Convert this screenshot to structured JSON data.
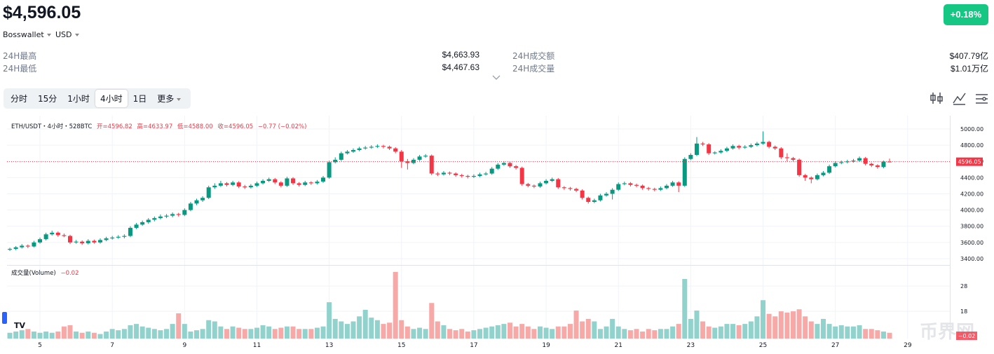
{
  "header": {
    "price": "$4,596.05",
    "source": "Bosswallet",
    "currency": "USD",
    "change": "+0.18%"
  },
  "stats": [
    {
      "label": "24H最高",
      "value": "$4,663.93"
    },
    {
      "label": "24H最低",
      "value": "$4,467.63"
    },
    {
      "label": "24H成交额",
      "value": "$407.79亿"
    },
    {
      "label": "24H成交量",
      "value": "$1.01万亿"
    }
  ],
  "tabs": [
    "分时",
    "15分",
    "1小时",
    "4小时",
    "1日",
    "更多"
  ],
  "active_tab": 3,
  "watermark": "币界网",
  "chart_data": {
    "type": "candlestick",
    "legend": {
      "symbol": "ETH/USDT・4小时・528BTC",
      "open": "开=4596.82",
      "high": "高=4633.97",
      "low": "低=4588.00",
      "close": "收=4596.05",
      "change": "−0.77 (−0.02%)"
    },
    "up_color": "#089981",
    "down_color": "#f23645",
    "volume_up_color": "#92d2cc",
    "volume_down_color": "#f7a9a7",
    "grid": true,
    "xlim": [
      -0.47,
      156
    ],
    "xticks": [
      {
        "value": 5,
        "label": "5"
      },
      {
        "value": 17,
        "label": "7"
      },
      {
        "value": 29,
        "label": "9"
      },
      {
        "value": 41,
        "label": "11"
      },
      {
        "value": 53,
        "label": "13"
      },
      {
        "value": 65,
        "label": "15"
      },
      {
        "value": 77,
        "label": "17"
      },
      {
        "value": 89,
        "label": "19"
      },
      {
        "value": 101,
        "label": "21"
      },
      {
        "value": 113,
        "label": "23"
      },
      {
        "value": 125,
        "label": "25"
      },
      {
        "value": 137,
        "label": "27"
      },
      {
        "value": 149,
        "label": "29"
      }
    ],
    "ylim": [
      3322,
      5164
    ],
    "yticks": [
      {
        "value": 5000,
        "label": "5000.00"
      },
      {
        "value": 4800,
        "label": "4800.00"
      },
      {
        "value": 4600,
        "label": "4600.00"
      },
      {
        "value": 4400,
        "label": "4400.00"
      },
      {
        "value": 4200,
        "label": "4200.00"
      },
      {
        "value": 4000,
        "label": "4000.00"
      },
      {
        "value": 3800,
        "label": "3800.00"
      },
      {
        "value": 3600,
        "label": "3600.00"
      },
      {
        "value": 3400,
        "label": "3400.00"
      }
    ],
    "candles": [
      [
        3510,
        3535,
        3495,
        3520
      ],
      [
        3520,
        3555,
        3505,
        3540
      ],
      [
        3540,
        3580,
        3525,
        3560
      ],
      [
        3560,
        3575,
        3530,
        3550
      ],
      [
        3550,
        3620,
        3540,
        3600
      ],
      [
        3600,
        3660,
        3585,
        3640
      ],
      [
        3640,
        3720,
        3625,
        3700
      ],
      [
        3700,
        3745,
        3685,
        3720
      ],
      [
        3720,
        3735,
        3670,
        3690
      ],
      [
        3690,
        3710,
        3665,
        3680
      ],
      [
        3680,
        3695,
        3580,
        3600
      ],
      [
        3600,
        3630,
        3585,
        3610
      ],
      [
        3610,
        3625,
        3570,
        3590
      ],
      [
        3590,
        3640,
        3575,
        3620
      ],
      [
        3620,
        3635,
        3585,
        3600
      ],
      [
        3600,
        3650,
        3585,
        3630
      ],
      [
        3630,
        3670,
        3615,
        3650
      ],
      [
        3650,
        3680,
        3635,
        3660
      ],
      [
        3660,
        3690,
        3645,
        3670
      ],
      [
        3670,
        3700,
        3650,
        3680
      ],
      [
        3680,
        3800,
        3665,
        3780
      ],
      [
        3780,
        3840,
        3765,
        3820
      ],
      [
        3820,
        3870,
        3805,
        3850
      ],
      [
        3850,
        3900,
        3830,
        3880
      ],
      [
        3880,
        3920,
        3860,
        3900
      ],
      [
        3900,
        3945,
        3885,
        3920
      ],
      [
        3920,
        3950,
        3900,
        3930
      ],
      [
        3930,
        3970,
        3910,
        3950
      ],
      [
        3950,
        3965,
        3920,
        3940
      ],
      [
        3940,
        4020,
        3925,
        4000
      ],
      [
        4000,
        4100,
        3985,
        4080
      ],
      [
        4080,
        4140,
        4060,
        4120
      ],
      [
        4120,
        4170,
        4100,
        4150
      ],
      [
        4150,
        4300,
        4135,
        4280
      ],
      [
        4280,
        4330,
        4260,
        4300
      ],
      [
        4300,
        4360,
        4285,
        4330
      ],
      [
        4330,
        4345,
        4290,
        4310
      ],
      [
        4310,
        4360,
        4295,
        4340
      ],
      [
        4340,
        4355,
        4270,
        4290
      ],
      [
        4290,
        4310,
        4260,
        4280
      ],
      [
        4280,
        4320,
        4265,
        4300
      ],
      [
        4300,
        4350,
        4285,
        4330
      ],
      [
        4330,
        4380,
        4315,
        4360
      ],
      [
        4360,
        4400,
        4345,
        4380
      ],
      [
        4380,
        4395,
        4320,
        4340
      ],
      [
        4340,
        4355,
        4280,
        4300
      ],
      [
        4300,
        4410,
        4285,
        4390
      ],
      [
        4390,
        4405,
        4310,
        4330
      ],
      [
        4330,
        4345,
        4290,
        4310
      ],
      [
        4310,
        4360,
        4295,
        4340
      ],
      [
        4340,
        4355,
        4310,
        4330
      ],
      [
        4330,
        4370,
        4315,
        4350
      ],
      [
        4350,
        4420,
        4335,
        4400
      ],
      [
        4400,
        4610,
        4385,
        4590
      ],
      [
        4590,
        4650,
        4575,
        4620
      ],
      [
        4620,
        4720,
        4605,
        4700
      ],
      [
        4700,
        4740,
        4685,
        4720
      ],
      [
        4720,
        4760,
        4705,
        4740
      ],
      [
        4740,
        4780,
        4725,
        4760
      ],
      [
        4760,
        4790,
        4745,
        4770
      ],
      [
        4770,
        4800,
        4755,
        4780
      ],
      [
        4780,
        4810,
        4765,
        4790
      ],
      [
        4790,
        4805,
        4760,
        4780
      ],
      [
        4780,
        4795,
        4740,
        4760
      ],
      [
        4760,
        4775,
        4700,
        4720
      ],
      [
        4720,
        4740,
        4520,
        4600
      ],
      [
        4600,
        4630,
        4500,
        4580
      ],
      [
        4580,
        4640,
        4565,
        4620
      ],
      [
        4620,
        4680,
        4605,
        4660
      ],
      [
        4660,
        4690,
        4645,
        4670
      ],
      [
        4670,
        4685,
        4430,
        4450
      ],
      [
        4450,
        4470,
        4420,
        4440
      ],
      [
        4440,
        4480,
        4425,
        4460
      ],
      [
        4460,
        4475,
        4430,
        4450
      ],
      [
        4450,
        4465,
        4410,
        4430
      ],
      [
        4430,
        4445,
        4400,
        4420
      ],
      [
        4420,
        4435,
        4390,
        4410
      ],
      [
        4410,
        4440,
        4395,
        4420
      ],
      [
        4420,
        4460,
        4405,
        4440
      ],
      [
        4440,
        4470,
        4425,
        4450
      ],
      [
        4450,
        4530,
        4435,
        4510
      ],
      [
        4510,
        4580,
        4495,
        4560
      ],
      [
        4560,
        4600,
        4545,
        4580
      ],
      [
        4580,
        4595,
        4520,
        4540
      ],
      [
        4540,
        4555,
        4500,
        4520
      ],
      [
        4520,
        4535,
        4300,
        4320
      ],
      [
        4320,
        4335,
        4280,
        4300
      ],
      [
        4300,
        4315,
        4270,
        4290
      ],
      [
        4290,
        4350,
        4275,
        4330
      ],
      [
        4330,
        4380,
        4315,
        4360
      ],
      [
        4360,
        4400,
        4345,
        4380
      ],
      [
        4380,
        4395,
        4260,
        4280
      ],
      [
        4280,
        4295,
        4250,
        4270
      ],
      [
        4270,
        4285,
        4240,
        4260
      ],
      [
        4260,
        4275,
        4220,
        4240
      ],
      [
        4240,
        4255,
        4130,
        4150
      ],
      [
        4150,
        4165,
        4080,
        4100
      ],
      [
        4100,
        4140,
        4085,
        4120
      ],
      [
        4120,
        4200,
        4105,
        4180
      ],
      [
        4180,
        4220,
        4165,
        4200
      ],
      [
        4200,
        4270,
        4130,
        4250
      ],
      [
        4250,
        4340,
        4235,
        4320
      ],
      [
        4320,
        4350,
        4305,
        4330
      ],
      [
        4330,
        4345,
        4290,
        4310
      ],
      [
        4310,
        4325,
        4280,
        4300
      ],
      [
        4300,
        4315,
        4250,
        4270
      ],
      [
        4270,
        4285,
        4240,
        4260
      ],
      [
        4260,
        4275,
        4230,
        4250
      ],
      [
        4250,
        4290,
        4235,
        4270
      ],
      [
        4270,
        4320,
        4255,
        4300
      ],
      [
        4300,
        4360,
        4285,
        4340
      ],
      [
        4340,
        4355,
        4220,
        4300
      ],
      [
        4300,
        4650,
        4285,
        4630
      ],
      [
        4630,
        4700,
        4615,
        4680
      ],
      [
        4680,
        4900,
        4665,
        4820
      ],
      [
        4820,
        4840,
        4790,
        4810
      ],
      [
        4810,
        4825,
        4680,
        4700
      ],
      [
        4700,
        4725,
        4685,
        4710
      ],
      [
        4710,
        4750,
        4695,
        4730
      ],
      [
        4730,
        4780,
        4715,
        4760
      ],
      [
        4760,
        4810,
        4745,
        4790
      ],
      [
        4790,
        4805,
        4750,
        4770
      ],
      [
        4770,
        4800,
        4755,
        4780
      ],
      [
        4780,
        4820,
        4765,
        4800
      ],
      [
        4800,
        4840,
        4785,
        4820
      ],
      [
        4820,
        4970,
        4805,
        4840
      ],
      [
        4840,
        4855,
        4760,
        4780
      ],
      [
        4780,
        4795,
        4740,
        4760
      ],
      [
        4760,
        4775,
        4630,
        4650
      ],
      [
        4650,
        4700,
        4600,
        4640
      ],
      [
        4640,
        4655,
        4600,
        4620
      ],
      [
        4620,
        4635,
        4410,
        4430
      ],
      [
        4430,
        4445,
        4360,
        4400
      ],
      [
        4400,
        4415,
        4330,
        4380
      ],
      [
        4380,
        4450,
        4365,
        4430
      ],
      [
        4430,
        4480,
        4415,
        4460
      ],
      [
        4460,
        4560,
        4445,
        4540
      ],
      [
        4540,
        4600,
        4525,
        4580
      ],
      [
        4580,
        4610,
        4565,
        4590
      ],
      [
        4590,
        4620,
        4575,
        4600
      ],
      [
        4600,
        4630,
        4585,
        4610
      ],
      [
        4610,
        4660,
        4595,
        4640
      ],
      [
        4640,
        4655,
        4550,
        4570
      ],
      [
        4570,
        4585,
        4530,
        4550
      ],
      [
        4550,
        4565,
        4510,
        4530
      ],
      [
        4530,
        4610,
        4515,
        4596.82
      ],
      [
        4596.82,
        4633.97,
        4588,
        4596.05
      ]
    ],
    "volume": {
      "title": "成交量(Volume)",
      "last_label": "−0.02",
      "ylim": [
        7.2,
        35.8
      ],
      "yticks": [
        28,
        18
      ],
      "values": [
        9.5,
        10,
        10.5,
        11,
        10,
        9.5,
        10,
        9.5,
        10,
        12,
        12.5,
        10,
        9.5,
        10,
        9.5,
        9,
        10,
        11,
        10.5,
        11,
        12.5,
        13,
        12,
        11.5,
        11,
        10.5,
        11,
        13,
        17.2,
        13,
        10,
        10.5,
        11,
        14.5,
        14,
        12,
        11,
        12,
        11.5,
        11,
        11,
        11.5,
        12.5,
        12,
        11,
        11.5,
        12,
        12,
        11,
        11,
        11,
        11.5,
        12,
        21.6,
        15,
        14,
        13,
        14,
        16,
        18.6,
        15.5,
        14.5,
        13,
        13.5,
        33.6,
        14.5,
        12,
        11,
        11.5,
        11,
        21.3,
        14,
        12.5,
        11,
        10.5,
        11,
        10,
        10.5,
        11,
        11.5,
        12,
        12.5,
        13,
        13.5,
        12,
        13,
        12,
        11,
        12,
        11.5,
        11,
        12,
        12,
        13,
        18.3,
        14,
        15,
        14,
        11,
        12,
        15,
        12,
        11,
        10.5,
        11,
        10,
        11,
        10.5,
        11,
        11,
        12,
        13,
        30.8,
        15,
        18.3,
        14,
        12,
        11.5,
        12,
        13,
        13,
        12.5,
        13,
        14,
        16,
        22.4,
        17,
        16,
        18,
        17.5,
        18,
        18.8,
        16,
        14,
        13,
        15,
        13,
        12,
        12.5,
        12,
        12,
        12.5,
        11,
        11,
        10.5,
        10,
        9.5
      ]
    }
  }
}
